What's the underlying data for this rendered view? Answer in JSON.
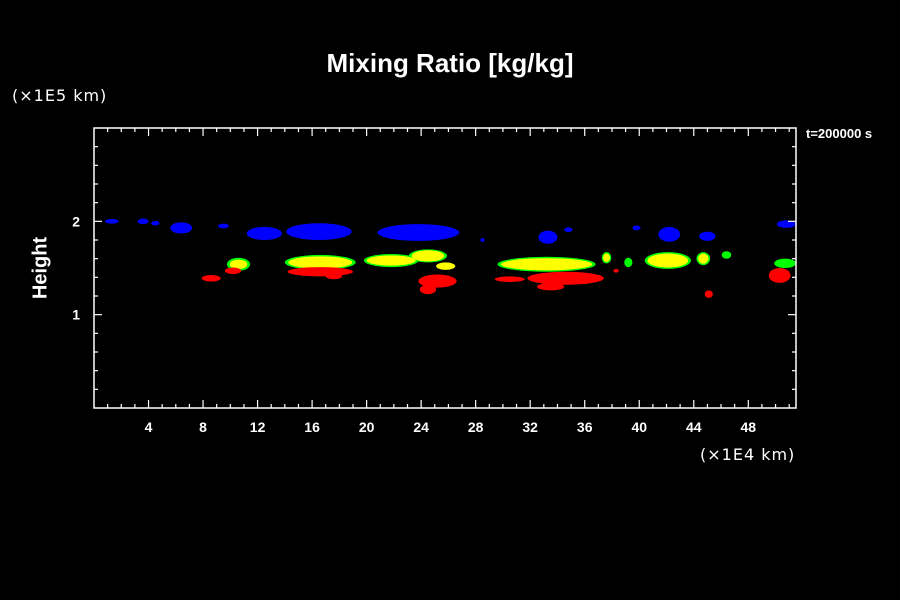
{
  "colors": {
    "background": "#000000",
    "frame": "#ffffff",
    "blue": "#0000ff",
    "red": "#ff0000",
    "yellow": "#ffff00",
    "green": "#00ff00"
  },
  "chart_data": {
    "type": "contour",
    "title": "Mixing Ratio [kg/kg]",
    "time_label": "t=200000 s",
    "ylabel": "Height",
    "x_scale_label": "(×1E4 km)",
    "y_scale_label": "(×1E5 km)",
    "xlim": [
      0,
      51.5
    ],
    "ylim": [
      0,
      3
    ],
    "x_ticks": [
      4,
      8,
      12,
      16,
      20,
      24,
      28,
      32,
      36,
      40,
      44,
      48
    ],
    "y_ticks": [
      1,
      2
    ],
    "x_tick_labels": [
      "4",
      "8",
      "12",
      "16",
      "20",
      "24",
      "28",
      "32",
      "36",
      "40",
      "44",
      "48"
    ],
    "y_tick_labels": [
      "1",
      "2"
    ],
    "x_minor_step": 1,
    "y_minor_step": 0.2,
    "patches": [
      {
        "color": "blue",
        "cx": 1.3,
        "cy": 2.0,
        "rx": 0.5,
        "ry": 0.025
      },
      {
        "color": "blue",
        "cx": 3.6,
        "cy": 2.0,
        "rx": 0.4,
        "ry": 0.03
      },
      {
        "color": "blue",
        "cx": 4.5,
        "cy": 1.98,
        "rx": 0.3,
        "ry": 0.025
      },
      {
        "color": "blue",
        "cx": 6.4,
        "cy": 1.93,
        "rx": 0.8,
        "ry": 0.06
      },
      {
        "color": "blue",
        "cx": 9.5,
        "cy": 1.95,
        "rx": 0.4,
        "ry": 0.025
      },
      {
        "color": "blue",
        "cx": 12.5,
        "cy": 1.87,
        "rx": 1.3,
        "ry": 0.07
      },
      {
        "color": "blue",
        "cx": 16.5,
        "cy": 1.89,
        "rx": 2.4,
        "ry": 0.09
      },
      {
        "color": "blue",
        "cx": 23.8,
        "cy": 1.88,
        "rx": 3.0,
        "ry": 0.09
      },
      {
        "color": "blue",
        "cx": 28.5,
        "cy": 1.8,
        "rx": 0.15,
        "ry": 0.02
      },
      {
        "color": "blue",
        "cx": 33.3,
        "cy": 1.83,
        "rx": 0.7,
        "ry": 0.07
      },
      {
        "color": "blue",
        "cx": 34.8,
        "cy": 1.91,
        "rx": 0.3,
        "ry": 0.025
      },
      {
        "color": "blue",
        "cx": 39.8,
        "cy": 1.93,
        "rx": 0.3,
        "ry": 0.025
      },
      {
        "color": "blue",
        "cx": 42.2,
        "cy": 1.86,
        "rx": 0.8,
        "ry": 0.08
      },
      {
        "color": "blue",
        "cx": 45.0,
        "cy": 1.84,
        "rx": 0.6,
        "ry": 0.05
      },
      {
        "color": "blue",
        "cx": 50.8,
        "cy": 1.97,
        "rx": 0.7,
        "ry": 0.04
      },
      {
        "color": "green",
        "cx": 10.6,
        "cy": 1.54,
        "rx": 0.85,
        "ry": 0.07
      },
      {
        "color": "green",
        "cx": 16.6,
        "cy": 1.56,
        "rx": 2.6,
        "ry": 0.08
      },
      {
        "color": "green",
        "cx": 21.8,
        "cy": 1.58,
        "rx": 2.0,
        "ry": 0.07
      },
      {
        "color": "green",
        "cx": 24.5,
        "cy": 1.63,
        "rx": 1.4,
        "ry": 0.07
      },
      {
        "color": "green",
        "cx": 33.2,
        "cy": 1.54,
        "rx": 3.6,
        "ry": 0.08
      },
      {
        "color": "green",
        "cx": 37.6,
        "cy": 1.61,
        "rx": 0.35,
        "ry": 0.06
      },
      {
        "color": "green",
        "cx": 39.2,
        "cy": 1.56,
        "rx": 0.3,
        "ry": 0.05
      },
      {
        "color": "green",
        "cx": 42.1,
        "cy": 1.58,
        "rx": 1.7,
        "ry": 0.09
      },
      {
        "color": "green",
        "cx": 44.7,
        "cy": 1.6,
        "rx": 0.5,
        "ry": 0.07
      },
      {
        "color": "green",
        "cx": 46.4,
        "cy": 1.64,
        "rx": 0.35,
        "ry": 0.04
      },
      {
        "color": "green",
        "cx": 50.7,
        "cy": 1.55,
        "rx": 0.8,
        "ry": 0.05
      },
      {
        "color": "yellow",
        "cx": 10.6,
        "cy": 1.54,
        "rx": 0.65,
        "ry": 0.05
      },
      {
        "color": "yellow",
        "cx": 16.6,
        "cy": 1.56,
        "rx": 2.35,
        "ry": 0.065
      },
      {
        "color": "yellow",
        "cx": 21.8,
        "cy": 1.58,
        "rx": 1.8,
        "ry": 0.055
      },
      {
        "color": "yellow",
        "cx": 24.5,
        "cy": 1.63,
        "rx": 1.2,
        "ry": 0.06
      },
      {
        "color": "yellow",
        "cx": 25.8,
        "cy": 1.52,
        "rx": 0.7,
        "ry": 0.04
      },
      {
        "color": "yellow",
        "cx": 33.2,
        "cy": 1.54,
        "rx": 3.35,
        "ry": 0.065
      },
      {
        "color": "yellow",
        "cx": 37.6,
        "cy": 1.61,
        "rx": 0.25,
        "ry": 0.045
      },
      {
        "color": "yellow",
        "cx": 42.1,
        "cy": 1.58,
        "rx": 1.5,
        "ry": 0.075
      },
      {
        "color": "yellow",
        "cx": 44.7,
        "cy": 1.6,
        "rx": 0.38,
        "ry": 0.055
      },
      {
        "color": "red",
        "cx": 8.6,
        "cy": 1.39,
        "rx": 0.7,
        "ry": 0.035
      },
      {
        "color": "red",
        "cx": 10.2,
        "cy": 1.47,
        "rx": 0.6,
        "ry": 0.035
      },
      {
        "color": "red",
        "cx": 16.6,
        "cy": 1.46,
        "rx": 2.4,
        "ry": 0.05
      },
      {
        "color": "red",
        "cx": 17.6,
        "cy": 1.41,
        "rx": 0.6,
        "ry": 0.03
      },
      {
        "color": "red",
        "cx": 25.2,
        "cy": 1.36,
        "rx": 1.4,
        "ry": 0.07
      },
      {
        "color": "red",
        "cx": 24.5,
        "cy": 1.27,
        "rx": 0.6,
        "ry": 0.05
      },
      {
        "color": "red",
        "cx": 30.5,
        "cy": 1.38,
        "rx": 1.1,
        "ry": 0.03
      },
      {
        "color": "red",
        "cx": 34.6,
        "cy": 1.39,
        "rx": 2.8,
        "ry": 0.07
      },
      {
        "color": "red",
        "cx": 33.5,
        "cy": 1.3,
        "rx": 1.0,
        "ry": 0.04
      },
      {
        "color": "red",
        "cx": 38.3,
        "cy": 1.47,
        "rx": 0.2,
        "ry": 0.02
      },
      {
        "color": "red",
        "cx": 45.1,
        "cy": 1.22,
        "rx": 0.3,
        "ry": 0.04
      },
      {
        "color": "red",
        "cx": 50.3,
        "cy": 1.42,
        "rx": 0.8,
        "ry": 0.08
      }
    ]
  }
}
